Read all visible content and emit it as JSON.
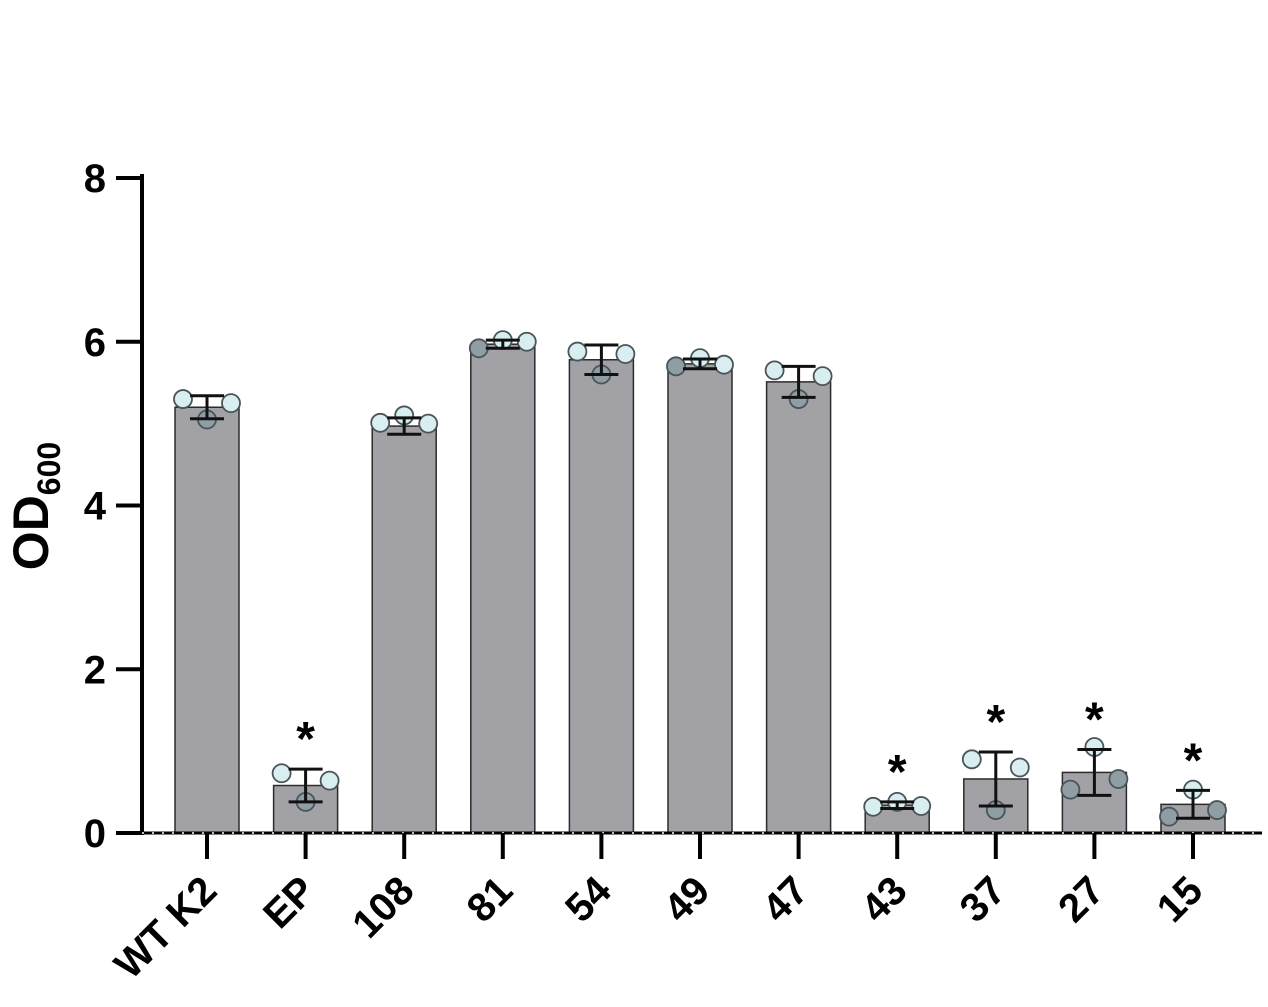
{
  "chart_data": {
    "type": "bar",
    "title": "",
    "xlabel": "",
    "ylabel": "OD",
    "ylabel_subscript": "600",
    "ylim": [
      0,
      8
    ],
    "yticks": [
      "0",
      "2",
      "4",
      "6",
      "8"
    ],
    "grid": false,
    "categories": [
      "WT K2",
      "EP",
      "108",
      "81",
      "54",
      "49",
      "47",
      "43",
      "37",
      "27",
      "15"
    ],
    "values": [
      5.2,
      0.58,
      4.97,
      5.97,
      5.78,
      5.73,
      5.51,
      0.34,
      0.66,
      0.74,
      0.35
    ],
    "error": [
      0.14,
      0.2,
      0.1,
      0.05,
      0.18,
      0.06,
      0.19,
      0.04,
      0.33,
      0.28,
      0.17
    ],
    "points": [
      [
        5.3,
        5.05,
        5.25
      ],
      [
        0.73,
        0.38,
        0.64
      ],
      [
        5.01,
        5.1,
        5.0
      ],
      [
        5.92,
        6.02,
        6.0
      ],
      [
        5.88,
        5.6,
        5.85
      ],
      [
        5.7,
        5.8,
        5.72
      ],
      [
        5.65,
        5.3,
        5.58
      ],
      [
        0.32,
        0.38,
        0.33
      ],
      [
        0.9,
        0.28,
        0.8
      ],
      [
        0.53,
        1.05,
        0.66
      ],
      [
        0.2,
        0.53,
        0.28
      ]
    ],
    "significant": [
      false,
      true,
      false,
      false,
      false,
      false,
      false,
      true,
      true,
      true,
      true
    ],
    "significance_marker": "*",
    "colors": {
      "bar": "#a2a1a6",
      "bar_stroke": "#2b2b2b",
      "point_light": "#d8eef0",
      "point_dark": "#8f9ea4",
      "axis": "#000000"
    }
  }
}
